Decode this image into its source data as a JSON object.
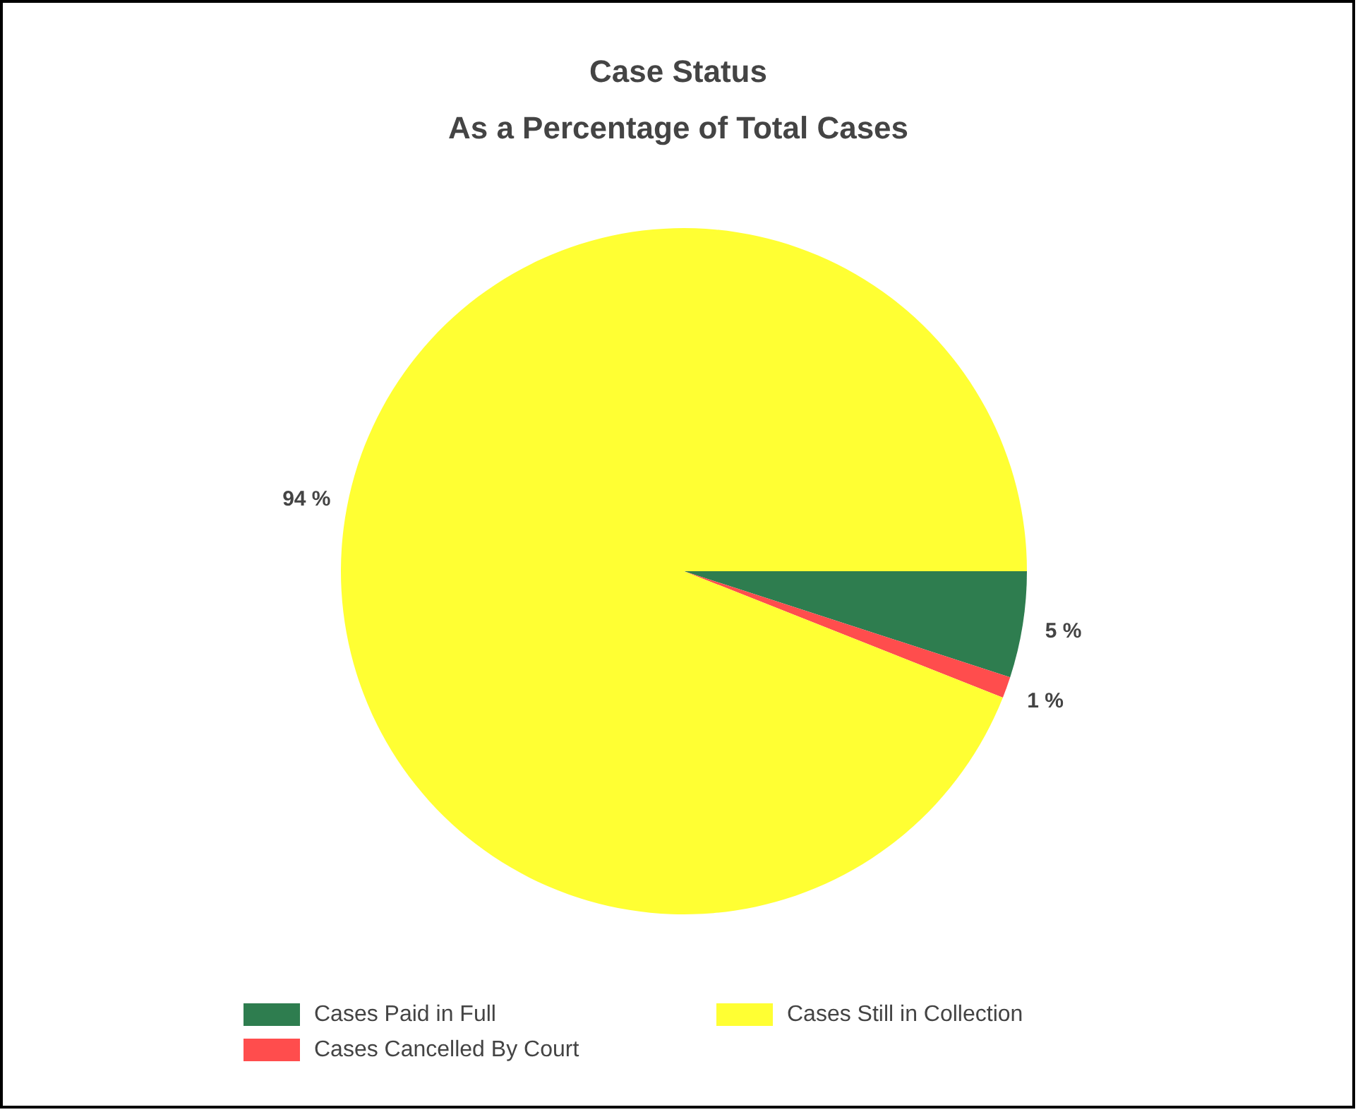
{
  "chart_data": {
    "type": "pie",
    "title": "Case Status",
    "subtitle": "As a Percentage of Total Cases",
    "categories": [
      "Cases Paid in Full",
      "Cases Cancelled By Court",
      "Cases Still in Collection"
    ],
    "values": [
      5,
      1,
      94
    ],
    "colors": [
      "#2e7d4f",
      "#ff4d4d",
      "#ffff33"
    ],
    "value_labels": [
      "5 %",
      "1 %",
      "94 %"
    ],
    "legend": "bottom"
  }
}
